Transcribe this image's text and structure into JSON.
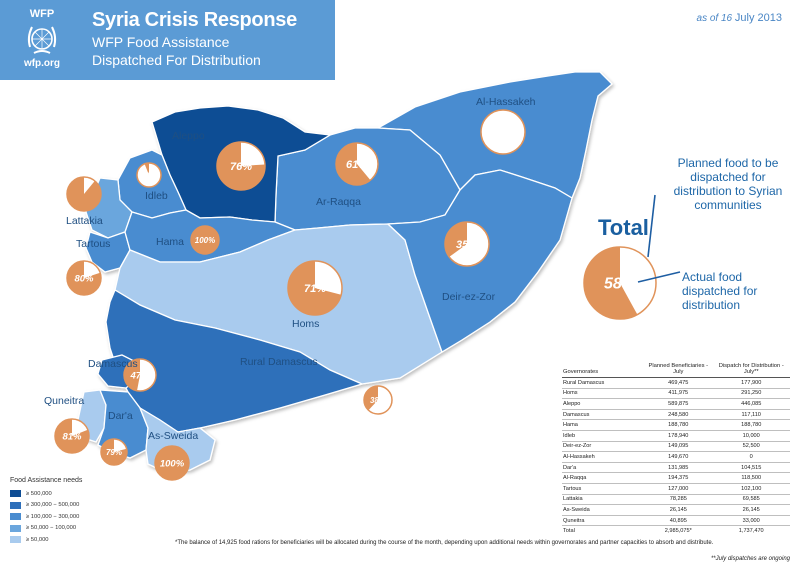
{
  "header": {
    "logo_top": "WFP",
    "logo_bottom": "wfp.org",
    "title": "Syria Crisis Response",
    "subtitle_line1": "WFP Food Assistance",
    "subtitle_line2": "Dispatched For Distribution"
  },
  "date": {
    "prefix": "as of 16",
    "value": "July 2013"
  },
  "colors": {
    "level1": "#0e4d94",
    "level2": "#2e6fba",
    "level3": "#4a8cd0",
    "level4": "#6ba6dd",
    "level5": "#a9cbee",
    "pie_fill": "#e0935a",
    "pie_text": "#ffffff"
  },
  "governorates": [
    {
      "name": "Aleppo",
      "percent": "76%",
      "fraction": 0.76
    },
    {
      "name": "Al-Hassakeh",
      "percent": "0%",
      "fraction": 0.0
    },
    {
      "name": "Ar-Raqqa",
      "percent": "61%",
      "fraction": 0.61
    },
    {
      "name": "Idleb",
      "percent": "6%",
      "fraction": 0.06
    },
    {
      "name": "Lattakia",
      "percent": "",
      "fraction": 0.89
    },
    {
      "name": "Tartous",
      "percent": "80%",
      "fraction": 0.8
    },
    {
      "name": "Hama",
      "percent": "100%",
      "fraction": 1.0
    },
    {
      "name": "Homs",
      "percent": "71%",
      "fraction": 0.71
    },
    {
      "name": "Deir-ez-Zor",
      "percent": "35%",
      "fraction": 0.35
    },
    {
      "name": "Damascus",
      "percent": "47%",
      "fraction": 0.47
    },
    {
      "name": "Rural Damascus",
      "percent": "38%",
      "fraction": 0.38
    },
    {
      "name": "Quneitra",
      "percent": "81%",
      "fraction": 0.81
    },
    {
      "name": "Dar'a",
      "percent": "79%",
      "fraction": 0.79
    },
    {
      "name": "As-Sweida",
      "percent": "100%",
      "fraction": 1.0
    }
  ],
  "legend": {
    "planned": "Planned food to be dispatched for distribution to Syrian communities",
    "total_label": "Total",
    "total_percent": "58%",
    "total_fraction": 0.58,
    "actual": "Actual food dispatched for distribution"
  },
  "table": {
    "headers": [
      "Governorates",
      "Planned Beneficiaries - July",
      "Dispatch for Distribution - July**"
    ],
    "rows": [
      [
        "Rural Damascus",
        "469,475",
        "177,900"
      ],
      [
        "Homs",
        "411,975",
        "291,250"
      ],
      [
        "Aleppo",
        "589,875",
        "446,085"
      ],
      [
        "Damascus",
        "248,580",
        "117,110"
      ],
      [
        "Hama",
        "188,780",
        "188,780"
      ],
      [
        "Idleb",
        "178,940",
        "10,000"
      ],
      [
        "Deir-ez-Zor",
        "149,095",
        "52,500"
      ],
      [
        "Al-Hassakeh",
        "149,670",
        "0"
      ],
      [
        "Dar'a",
        "131,985",
        "104,515"
      ],
      [
        "Al-Raqqa",
        "194,375",
        "118,500"
      ],
      [
        "Tartous",
        "127,000",
        "102,100"
      ],
      [
        "Lattakia",
        "78,285",
        "69,585"
      ],
      [
        "As-Sweida",
        "26,145",
        "26,145"
      ],
      [
        "Quneitra",
        "40,895",
        "33,000"
      ]
    ],
    "total": [
      "Total",
      "2,985,075*",
      "1,737,470"
    ]
  },
  "food_legend": {
    "title": "Food Assistance needs",
    "items": [
      {
        "label": "≥ 500,000",
        "color": "#0e4d94"
      },
      {
        "label": "≥ 300,000 − 500,000",
        "color": "#2e6fba"
      },
      {
        "label": "≥ 100,000 − 300,000",
        "color": "#4a8cd0"
      },
      {
        "label": "≥ 50,000 − 100,000",
        "color": "#6ba6dd"
      },
      {
        "label": "≥ 50,000",
        "color": "#a9cbee"
      }
    ]
  },
  "footnote": "*The balance of 14,925 food rations for beneficiaries will be allocated during the course of the month, depending upon additional needs within governorates and partner capacities to absorb and distribute.",
  "footnote2": "**July dispatches are ongoing"
}
